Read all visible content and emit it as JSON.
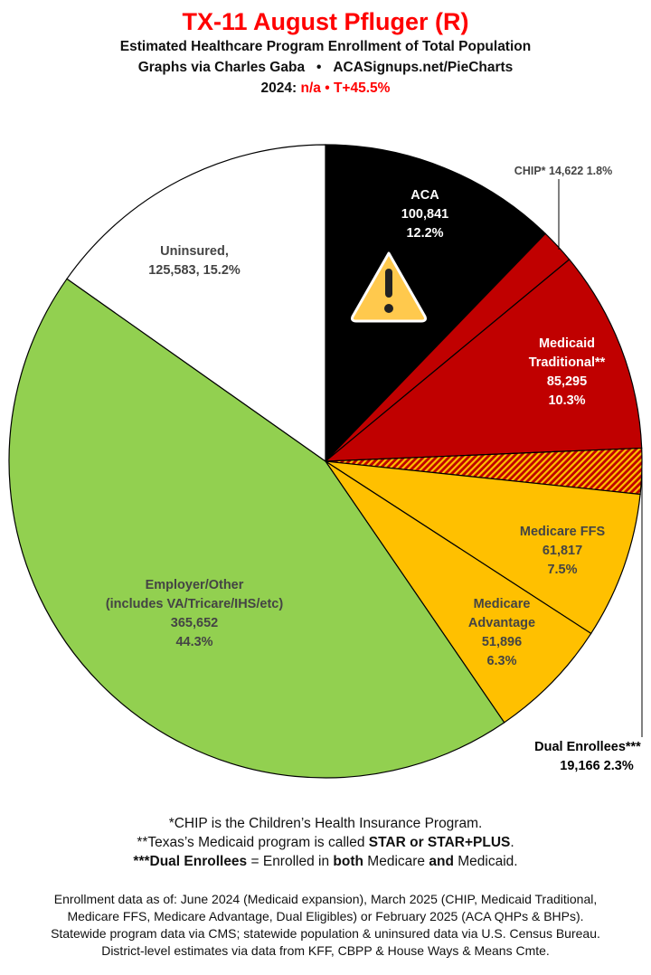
{
  "header": {
    "title": "TX-11 August Pfluger (R)",
    "subtitle": "Estimated Healthcare Program Enrollment of Total Population",
    "credit_left": "Graphs via Charles Gaba",
    "credit_sep": "•",
    "credit_right": "ACASignups.net/PieCharts",
    "year_label": "2024:",
    "year_value": "n/a",
    "year_sep": "•",
    "trump_margin": "T+45.5%"
  },
  "chart_data": {
    "type": "pie",
    "start": "top",
    "direction": "clockwise",
    "slices": [
      {
        "name": "ACA",
        "value": 100841,
        "percent": 12.2,
        "color": "#000000",
        "label_lines": [
          "ACA",
          "100,841",
          "12.2%"
        ]
      },
      {
        "name": "CHIP*",
        "value": 14622,
        "percent": 1.8,
        "color": "#c00000",
        "label_lines": [
          "CHIP* 14,622 1.8%"
        ]
      },
      {
        "name": "Medicaid Traditional**",
        "value": 85295,
        "percent": 10.3,
        "color": "#c00000",
        "label_lines": [
          "Medicaid",
          "Traditional**",
          "85,295",
          "10.3%"
        ]
      },
      {
        "name": "Dual Enrollees***",
        "value": 19166,
        "percent": 2.3,
        "color": "#c00000",
        "pattern": "hatched red/yellow",
        "label_lines": [
          "Dual Enrollees***",
          "19,166 2.3%"
        ]
      },
      {
        "name": "Medicare FFS",
        "value": 61817,
        "percent": 7.5,
        "color": "#ffc000",
        "label_lines": [
          "Medicare FFS",
          "61,817",
          "7.5%"
        ]
      },
      {
        "name": "Medicare Advantage",
        "value": 51896,
        "percent": 6.3,
        "color": "#ffc000",
        "label_lines": [
          "Medicare",
          "Advantage",
          "51,896",
          "6.3%"
        ]
      },
      {
        "name": "Employer/Other",
        "value": 365652,
        "percent": 44.3,
        "color": "#92d050",
        "label_lines": [
          "Employer/Other",
          "(includes VA/Tricare/IHS/etc)",
          "365,652",
          "44.3%"
        ]
      },
      {
        "name": "Uninsured",
        "value": 125583,
        "percent": 15.2,
        "color": "#ffffff",
        "label_lines": [
          "Uninsured,",
          "125,583, 15.2%"
        ]
      }
    ],
    "annotation_icon": "warning-triangle-icon"
  },
  "notes": {
    "chip": "*CHIP is the Children’s Health Insurance Program.",
    "medicaid_pre": "**Texas’s Medicaid program is called ",
    "medicaid_bold": "STAR or STAR+PLUS",
    "medicaid_post": ".",
    "dual_bold": "***Dual Enrollees",
    "dual_mid": " = Enrolled in ",
    "both": "both",
    "dual_mid2": " Medicare ",
    "and": "and",
    "dual_end": " Medicaid."
  },
  "sources": [
    "Enrollment data as of: June 2024 (Medicaid expansion), March 2025 (CHIP, Medicaid Traditional,",
    "Medicare FFS, Medicare Advantage, Dual Eligibles) or February 2025 (ACA QHPs & BHPs).",
    "Statewide program data via CMS; statewide population & uninsured data via U.S. Census Bureau.",
    "District-level estimates via data from KFF, CBPP & House Ways & Means Cmte."
  ]
}
